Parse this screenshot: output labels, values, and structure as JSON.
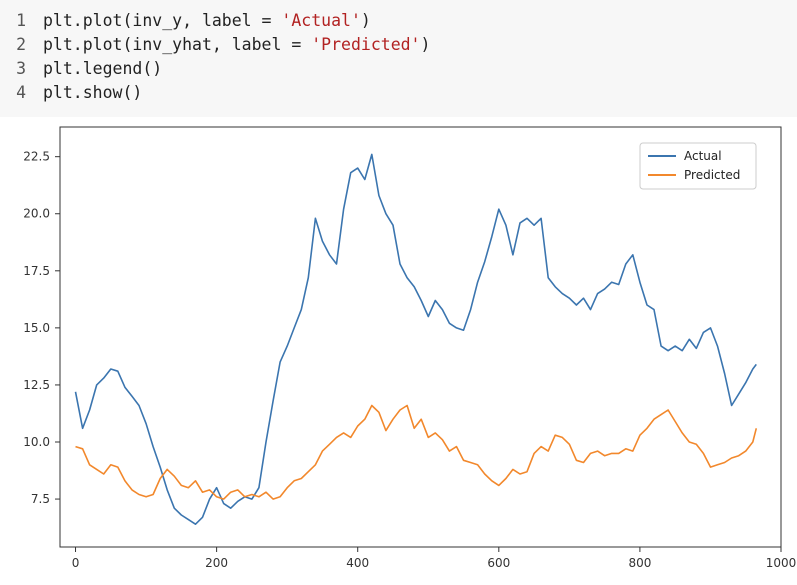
{
  "code_cell": {
    "lines": [
      {
        "number": "1",
        "parts": [
          {
            "t": "plt.plot(inv_y, label = ",
            "c": "kw"
          },
          {
            "t": "'Actual'",
            "c": "str"
          },
          {
            "t": ")",
            "c": "kw"
          }
        ]
      },
      {
        "number": "2",
        "parts": [
          {
            "t": "plt.plot(inv_yhat, label = ",
            "c": "kw"
          },
          {
            "t": "'Predicted'",
            "c": "str"
          },
          {
            "t": ")",
            "c": "kw"
          }
        ]
      },
      {
        "number": "3",
        "parts": [
          {
            "t": "plt.legend()",
            "c": "kw"
          }
        ]
      },
      {
        "number": "4",
        "parts": [
          {
            "t": "plt.show()",
            "c": "kw"
          }
        ]
      }
    ]
  },
  "chart_data": {
    "type": "line",
    "title": "",
    "xlabel": "",
    "ylabel": "",
    "xlim": [
      -22,
      1000
    ],
    "ylim": [
      5.4,
      23.8
    ],
    "x_ticks": [
      0,
      200,
      400,
      600,
      800,
      1000
    ],
    "y_ticks": [
      7.5,
      10.0,
      12.5,
      15.0,
      17.5,
      20.0,
      22.5
    ],
    "x_tick_labels": [
      "0",
      "200",
      "400",
      "600",
      "800",
      "1000"
    ],
    "y_tick_labels": [
      "7.5",
      "10.0",
      "12.5",
      "15.0",
      "17.5",
      "20.0",
      "22.5"
    ],
    "grid": false,
    "legend_position": "top-right",
    "series": [
      {
        "name": "Actual",
        "color": "#3b75af",
        "x": [
          0,
          10,
          20,
          30,
          40,
          50,
          60,
          70,
          80,
          90,
          100,
          110,
          120,
          130,
          140,
          150,
          160,
          170,
          180,
          190,
          200,
          210,
          220,
          230,
          240,
          250,
          260,
          270,
          280,
          290,
          300,
          310,
          320,
          330,
          340,
          350,
          360,
          370,
          380,
          390,
          400,
          410,
          420,
          430,
          440,
          450,
          460,
          470,
          480,
          490,
          500,
          510,
          520,
          530,
          540,
          550,
          560,
          570,
          580,
          590,
          600,
          610,
          620,
          630,
          640,
          650,
          660,
          670,
          680,
          690,
          700,
          710,
          720,
          730,
          740,
          750,
          760,
          770,
          780,
          790,
          800,
          810,
          820,
          830,
          840,
          850,
          860,
          870,
          880,
          890,
          900,
          910,
          920,
          930,
          940,
          950,
          960,
          965
        ],
        "values": [
          12.2,
          10.6,
          11.4,
          12.5,
          12.8,
          13.2,
          13.1,
          12.4,
          12.0,
          11.6,
          10.8,
          9.8,
          8.9,
          7.9,
          7.1,
          6.8,
          6.6,
          6.4,
          6.7,
          7.5,
          8.0,
          7.3,
          7.1,
          7.4,
          7.6,
          7.5,
          8.0,
          10.0,
          11.8,
          13.5,
          14.2,
          15.0,
          15.8,
          17.2,
          19.8,
          18.8,
          18.2,
          17.8,
          20.2,
          21.8,
          22.0,
          21.5,
          22.6,
          20.8,
          20.0,
          19.5,
          17.8,
          17.2,
          16.8,
          16.2,
          15.5,
          16.2,
          15.8,
          15.2,
          15.0,
          14.9,
          15.8,
          17.0,
          17.9,
          19.0,
          20.2,
          19.5,
          18.2,
          19.6,
          19.8,
          19.5,
          19.8,
          17.2,
          16.8,
          16.5,
          16.3,
          16.0,
          16.3,
          15.8,
          16.5,
          16.7,
          17.0,
          16.9,
          17.8,
          18.2,
          17.0,
          16.0,
          15.8,
          14.2,
          14.0,
          14.2,
          14.0,
          14.5,
          14.1,
          14.8,
          15.0,
          14.2,
          13.0,
          11.6,
          12.1,
          12.6,
          13.2,
          13.4
        ]
      },
      {
        "name": "Predicted",
        "color": "#f2882c",
        "x": [
          0,
          10,
          20,
          30,
          40,
          50,
          60,
          70,
          80,
          90,
          100,
          110,
          120,
          130,
          140,
          150,
          160,
          170,
          180,
          190,
          200,
          210,
          220,
          230,
          240,
          250,
          260,
          270,
          280,
          290,
          300,
          310,
          320,
          330,
          340,
          350,
          360,
          370,
          380,
          390,
          400,
          410,
          420,
          430,
          440,
          450,
          460,
          470,
          480,
          490,
          500,
          510,
          520,
          530,
          540,
          550,
          560,
          570,
          580,
          590,
          600,
          610,
          620,
          630,
          640,
          650,
          660,
          670,
          680,
          690,
          700,
          710,
          720,
          730,
          740,
          750,
          760,
          770,
          780,
          790,
          800,
          810,
          820,
          830,
          840,
          850,
          860,
          870,
          880,
          890,
          900,
          910,
          920,
          930,
          940,
          950,
          960,
          965
        ],
        "values": [
          9.8,
          9.7,
          9.0,
          8.8,
          8.6,
          9.0,
          8.9,
          8.3,
          7.9,
          7.7,
          7.6,
          7.7,
          8.4,
          8.8,
          8.5,
          8.1,
          8.0,
          8.3,
          7.8,
          7.9,
          7.6,
          7.5,
          7.8,
          7.9,
          7.6,
          7.7,
          7.6,
          7.8,
          7.5,
          7.6,
          8.0,
          8.3,
          8.4,
          8.7,
          9.0,
          9.6,
          9.9,
          10.2,
          10.4,
          10.2,
          10.7,
          11.0,
          11.6,
          11.3,
          10.5,
          11.0,
          11.4,
          11.6,
          10.6,
          11.0,
          10.2,
          10.4,
          10.1,
          9.6,
          9.8,
          9.2,
          9.1,
          9.0,
          8.6,
          8.3,
          8.1,
          8.4,
          8.8,
          8.6,
          8.7,
          9.5,
          9.8,
          9.6,
          10.3,
          10.2,
          9.9,
          9.2,
          9.1,
          9.5,
          9.6,
          9.4,
          9.5,
          9.5,
          9.7,
          9.6,
          10.3,
          10.6,
          11.0,
          11.2,
          11.4,
          10.9,
          10.4,
          10.0,
          9.9,
          9.5,
          8.9,
          9.0,
          9.1,
          9.3,
          9.4,
          9.6,
          10.0,
          10.6
        ]
      }
    ]
  }
}
